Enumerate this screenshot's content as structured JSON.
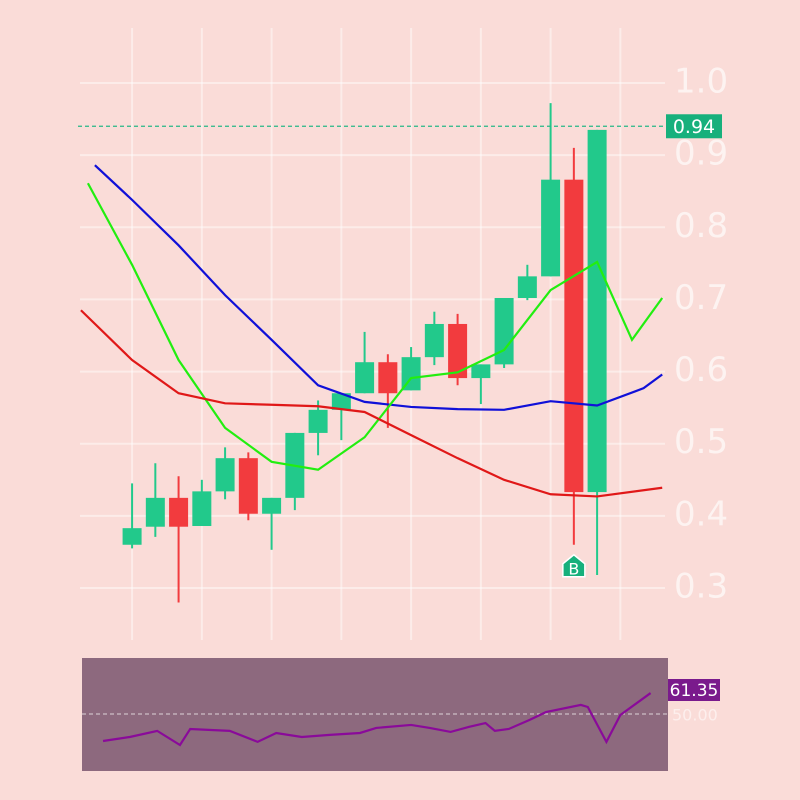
{
  "chart_data": [
    {
      "type": "candlestick",
      "open": [
        0.36,
        0.385,
        0.425,
        0.386,
        0.434,
        0.48,
        0.403,
        0.425,
        0.515,
        0.547,
        0.57,
        0.613,
        0.574,
        0.62,
        0.666,
        0.591,
        0.61,
        0.702,
        0.732,
        0.866,
        0.433
      ],
      "high": [
        0.445,
        0.473,
        0.455,
        0.45,
        0.495,
        0.488,
        0.425,
        0.515,
        0.56,
        0.57,
        0.655,
        0.624,
        0.634,
        0.683,
        0.68,
        0.61,
        0.702,
        0.748,
        0.972,
        0.91,
        0.935
      ],
      "low": [
        0.355,
        0.371,
        0.28,
        0.386,
        0.423,
        0.394,
        0.353,
        0.408,
        0.484,
        0.505,
        0.57,
        0.522,
        0.574,
        0.609,
        0.581,
        0.555,
        0.605,
        0.699,
        0.732,
        0.36,
        0.318
      ],
      "close": [
        0.383,
        0.425,
        0.385,
        0.434,
        0.48,
        0.403,
        0.425,
        0.515,
        0.547,
        0.57,
        0.613,
        0.57,
        0.62,
        0.666,
        0.591,
        0.61,
        0.702,
        0.732,
        0.866,
        0.433,
        0.935
      ],
      "up_color": "#22c98b",
      "down_color": "#f23b3e",
      "lines": [
        {
          "color": "#1010d8",
          "x": [
            -1.6,
            0,
            2,
            4,
            6,
            8,
            10,
            12,
            14,
            16,
            18,
            20,
            22,
            22.8
          ],
          "values": [
            0.886,
            0.838,
            0.775,
            0.706,
            0.644,
            0.581,
            0.558,
            0.551,
            0.548,
            0.547,
            0.559,
            0.553,
            0.577,
            0.596
          ]
        },
        {
          "color": "#22ee10",
          "x": [
            -1.9,
            0,
            2,
            4,
            6,
            8,
            10,
            12,
            14,
            16,
            18,
            20,
            21.5,
            22.8
          ],
          "values": [
            0.861,
            0.748,
            0.616,
            0.522,
            0.475,
            0.464,
            0.509,
            0.591,
            0.599,
            0.63,
            0.713,
            0.752,
            0.644,
            0.702
          ]
        },
        {
          "color": "#e01818",
          "x": [
            -2.2,
            0,
            2,
            4,
            6,
            8,
            10,
            12,
            14,
            16,
            18,
            20,
            22.8
          ],
          "values": [
            0.685,
            0.616,
            0.57,
            0.556,
            0.554,
            0.552,
            0.544,
            0.512,
            0.48,
            0.45,
            0.43,
            0.427,
            0.439
          ]
        }
      ],
      "last_price": 0.94,
      "markers": [
        {
          "index": 19,
          "label": "B"
        }
      ],
      "xlim": [
        -2.24,
        22.92
      ],
      "ylim": [
        0.228,
        1.115
      ],
      "yticks": [
        0.3,
        0.4,
        0.5,
        0.6,
        0.7,
        0.8,
        0.9,
        {
          "value": 1,
          "label": "1.0"
        }
      ],
      "grid": true
    },
    {
      "type": "line",
      "x": [
        -1.25,
        -0.1,
        1.08,
        2.06,
        2.5,
        4.2,
        5.4,
        6.2,
        7.3,
        8.5,
        9.8,
        10.5,
        12,
        12.8,
        13.7,
        14.5,
        15.2,
        15.6,
        16.2,
        17.1,
        17.8,
        19.3,
        19.6,
        20.4,
        21,
        22.3
      ],
      "values": [
        37.2,
        39.1,
        42.0,
        35.3,
        42.9,
        42.0,
        36.8,
        41.0,
        39.1,
        40.1,
        41.0,
        43.4,
        44.8,
        43.4,
        41.5,
        43.9,
        45.7,
        42.0,
        42.9,
        47.2,
        50.9,
        54.3,
        53.3,
        36.8,
        49.5,
        59.9
      ],
      "color": "#8a0a9a",
      "last_value": {
        "value": 61.35,
        "label": "61.35"
      },
      "xlim": [
        -2.24,
        22.92
      ],
      "ylim": [
        23,
        76.5
      ],
      "yticks": [
        {
          "value": 50,
          "label": "50.00"
        }
      ]
    }
  ]
}
